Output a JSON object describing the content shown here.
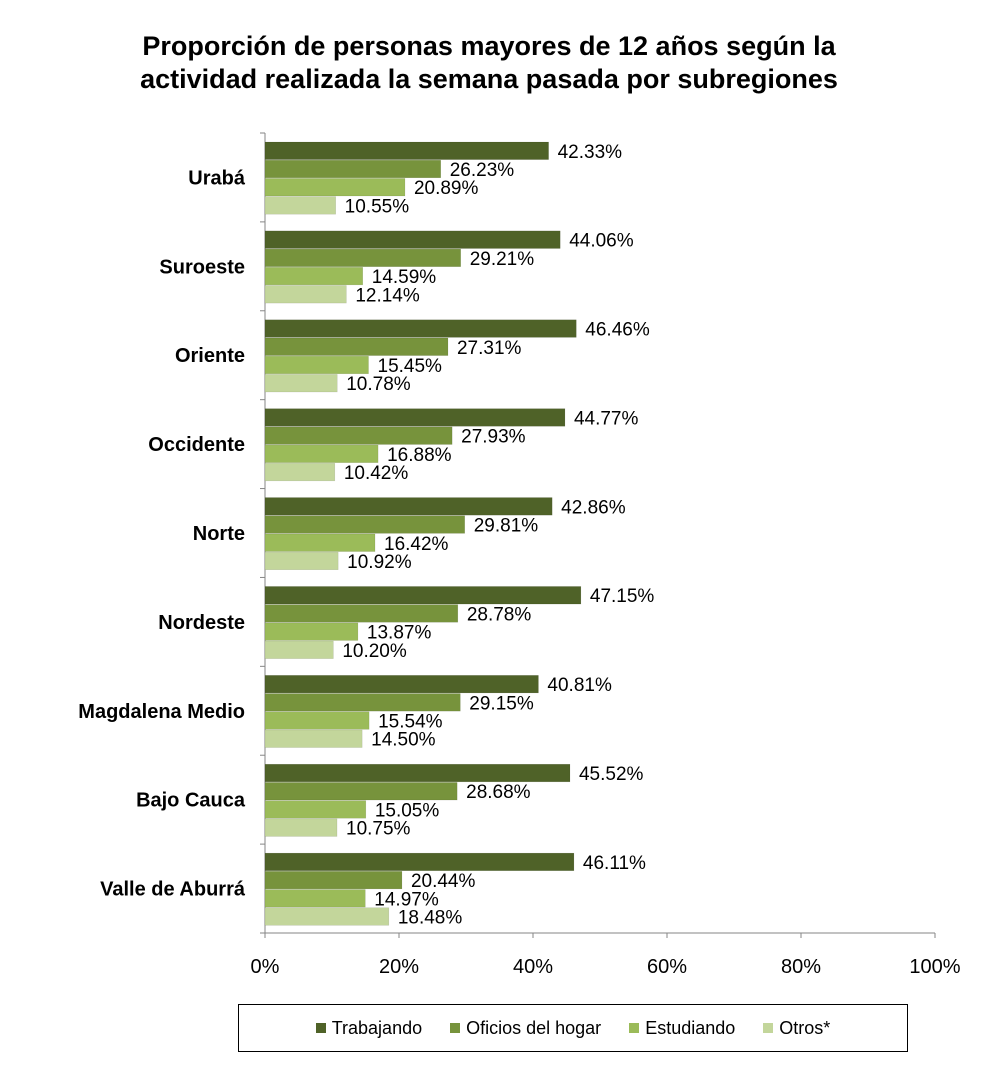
{
  "chart_data": {
    "type": "bar",
    "orientation": "horizontal",
    "title_lines": [
      "Proporción de personas mayores de 12 años según la",
      "actividad realizada la semana pasada por subregiones"
    ],
    "categories": [
      "Urabá",
      "Suroeste",
      "Oriente",
      "Occidente",
      "Norte",
      "Nordeste",
      "Magdalena Medio",
      "Bajo Cauca",
      "Valle de Aburrá"
    ],
    "series": [
      {
        "name": "Trabajando",
        "color": "#4f6228",
        "values": [
          42.33,
          44.06,
          46.46,
          44.77,
          42.86,
          47.15,
          40.81,
          45.52,
          46.11
        ],
        "labels": [
          "42.33%",
          "44.06%",
          "46.46%",
          "44.77%",
          "42.86%",
          "47.15%",
          "40.81%",
          "45.52%",
          "46.11%"
        ]
      },
      {
        "name": "Oficios del hogar",
        "color": "#77933c",
        "values": [
          26.23,
          29.21,
          27.31,
          27.93,
          29.81,
          28.78,
          29.15,
          28.68,
          20.44
        ],
        "labels": [
          "26.23%",
          "29.21%",
          "27.31%",
          "27.93%",
          "29.81%",
          "28.78%",
          "29.15%",
          "28.68%",
          "20.44%"
        ]
      },
      {
        "name": "Estudiando",
        "color": "#9bbb59",
        "values": [
          20.89,
          14.59,
          15.45,
          16.88,
          16.42,
          13.87,
          15.54,
          15.05,
          14.97
        ],
        "labels": [
          "20.89%",
          "14.59%",
          "15.45%",
          "16.88%",
          "16.42%",
          "13.87%",
          "15.54%",
          "15.05%",
          "14.97%"
        ]
      },
      {
        "name": "Otros*",
        "color": "#c3d69b",
        "values": [
          10.55,
          12.14,
          10.78,
          10.42,
          10.92,
          10.2,
          14.5,
          10.75,
          18.48
        ],
        "labels": [
          "10.55%",
          "12.14%",
          "10.78%",
          "10.42%",
          "10.92%",
          "10.20%",
          "14.50%",
          "10.75%",
          "18.48%"
        ]
      }
    ],
    "xlim": [
      0,
      100
    ],
    "x_ticks": [
      0,
      20,
      40,
      60,
      80,
      100
    ],
    "x_tick_labels": [
      "0%",
      "20%",
      "40%",
      "60%",
      "80%",
      "100%"
    ],
    "grid": false,
    "legend_position": "bottom"
  }
}
